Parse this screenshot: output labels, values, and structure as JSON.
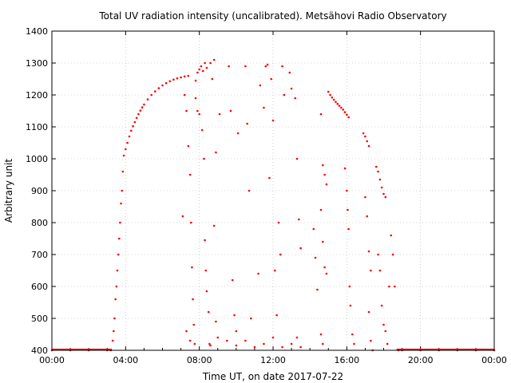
{
  "chart_data": {
    "type": "scatter",
    "title": "Total UV radiation intensity (uncalibrated). Metsähovi Radio Observatory",
    "xlabel": "Time UT, on date 2017-07-22",
    "ylabel": "Arbitrary unit",
    "xlim": [
      "00:00",
      "24:00"
    ],
    "ylim": [
      400,
      1400
    ],
    "x_ticks": [
      "00:00",
      "04:00",
      "08:00",
      "12:00",
      "16:00",
      "20:00",
      "00:00"
    ],
    "y_ticks": [
      "400",
      "500",
      "600",
      "700",
      "800",
      "900",
      "1000",
      "1100",
      "1200",
      "1300",
      "1400"
    ],
    "grid": true,
    "marker_color": "#ff0000",
    "series": [
      {
        "x_unit": "hours UT",
        "points": [
          [
            0.0,
            400
          ],
          [
            1.0,
            400
          ],
          [
            2.0,
            400
          ],
          [
            3.0,
            400
          ],
          [
            3.2,
            400
          ],
          [
            3.3,
            430
          ],
          [
            3.35,
            460
          ],
          [
            3.4,
            500
          ],
          [
            3.45,
            560
          ],
          [
            3.5,
            600
          ],
          [
            3.55,
            650
          ],
          [
            3.6,
            700
          ],
          [
            3.65,
            750
          ],
          [
            3.7,
            800
          ],
          [
            3.75,
            860
          ],
          [
            3.8,
            900
          ],
          [
            3.85,
            960
          ],
          [
            3.9,
            1010
          ],
          [
            4.0,
            1030
          ],
          [
            4.1,
            1050
          ],
          [
            4.2,
            1070
          ],
          [
            4.3,
            1088
          ],
          [
            4.4,
            1102
          ],
          [
            4.5,
            1115
          ],
          [
            4.6,
            1128
          ],
          [
            4.7,
            1140
          ],
          [
            4.8,
            1151
          ],
          [
            4.9,
            1161
          ],
          [
            5.0,
            1170
          ],
          [
            5.2,
            1186
          ],
          [
            5.4,
            1200
          ],
          [
            5.6,
            1211
          ],
          [
            5.8,
            1221
          ],
          [
            6.0,
            1230
          ],
          [
            6.2,
            1237
          ],
          [
            6.4,
            1243
          ],
          [
            6.6,
            1248
          ],
          [
            6.8,
            1252
          ],
          [
            7.0,
            1255
          ],
          [
            7.2,
            1258
          ],
          [
            7.4,
            1260
          ],
          [
            7.1,
            820
          ],
          [
            7.2,
            1200
          ],
          [
            7.3,
            1150
          ],
          [
            7.4,
            1040
          ],
          [
            7.5,
            950
          ],
          [
            7.55,
            800
          ],
          [
            7.6,
            660
          ],
          [
            7.65,
            560
          ],
          [
            7.7,
            480
          ],
          [
            7.75,
            420
          ],
          [
            7.3,
            460
          ],
          [
            7.5,
            430
          ],
          [
            7.8,
            1245
          ],
          [
            7.9,
            1270
          ],
          [
            8.0,
            1280
          ],
          [
            8.1,
            1290
          ],
          [
            8.2,
            1275
          ],
          [
            8.3,
            1300
          ],
          [
            8.4,
            1285
          ],
          [
            8.6,
            1300
          ],
          [
            8.8,
            1310
          ],
          [
            7.8,
            1190
          ],
          [
            7.9,
            1150
          ],
          [
            8.0,
            1140
          ],
          [
            8.15,
            1090
          ],
          [
            8.25,
            1000
          ],
          [
            8.3,
            745
          ],
          [
            8.35,
            650
          ],
          [
            8.4,
            585
          ],
          [
            8.5,
            520
          ],
          [
            8.55,
            420
          ],
          [
            8.6,
            415
          ],
          [
            8.7,
            1250
          ],
          [
            8.8,
            790
          ],
          [
            8.9,
            490
          ],
          [
            8.9,
            1020
          ],
          [
            9.0,
            440
          ],
          [
            9.1,
            1140
          ],
          [
            9.6,
            1290
          ],
          [
            9.7,
            1150
          ],
          [
            9.8,
            620
          ],
          [
            9.9,
            510
          ],
          [
            10.0,
            460
          ],
          [
            10.1,
            1080
          ],
          [
            10.5,
            1290
          ],
          [
            10.6,
            1110
          ],
          [
            10.7,
            900
          ],
          [
            10.8,
            500
          ],
          [
            11.2,
            640
          ],
          [
            11.3,
            1230
          ],
          [
            11.5,
            1160
          ],
          [
            11.6,
            1290
          ],
          [
            11.7,
            1295
          ],
          [
            11.8,
            940
          ],
          [
            11.9,
            1250
          ],
          [
            12.0,
            1120
          ],
          [
            12.1,
            650
          ],
          [
            12.2,
            510
          ],
          [
            12.3,
            800
          ],
          [
            12.4,
            700
          ],
          [
            12.5,
            1290
          ],
          [
            12.6,
            1200
          ],
          [
            12.9,
            1270
          ],
          [
            13.0,
            1220
          ],
          [
            13.2,
            1190
          ],
          [
            13.3,
            1000
          ],
          [
            13.4,
            810
          ],
          [
            13.5,
            720
          ],
          [
            13.3,
            440
          ],
          [
            9.5,
            430
          ],
          [
            10.0,
            415
          ],
          [
            10.5,
            430
          ],
          [
            11.0,
            410
          ],
          [
            11.5,
            420
          ],
          [
            12.0,
            440
          ],
          [
            12.5,
            410
          ],
          [
            13.0,
            420
          ],
          [
            13.5,
            410
          ],
          [
            14.2,
            780
          ],
          [
            14.3,
            690
          ],
          [
            14.4,
            590
          ],
          [
            14.6,
            1140
          ],
          [
            14.7,
            980
          ],
          [
            14.8,
            950
          ],
          [
            14.9,
            920
          ],
          [
            14.6,
            840
          ],
          [
            14.7,
            740
          ],
          [
            14.8,
            660
          ],
          [
            14.9,
            640
          ],
          [
            14.6,
            450
          ],
          [
            14.7,
            420
          ],
          [
            15.0,
            1210
          ],
          [
            15.1,
            1200
          ],
          [
            15.2,
            1192
          ],
          [
            15.3,
            1185
          ],
          [
            15.4,
            1178
          ],
          [
            15.5,
            1172
          ],
          [
            15.6,
            1166
          ],
          [
            15.7,
            1160
          ],
          [
            15.8,
            1154
          ],
          [
            15.9,
            1146
          ],
          [
            16.0,
            1138
          ],
          [
            16.1,
            1130
          ],
          [
            15.9,
            970
          ],
          [
            16.0,
            900
          ],
          [
            16.05,
            840
          ],
          [
            16.1,
            780
          ],
          [
            16.15,
            600
          ],
          [
            16.2,
            540
          ],
          [
            16.3,
            450
          ],
          [
            16.4,
            420
          ],
          [
            16.9,
            1080
          ],
          [
            17.0,
            1070
          ],
          [
            17.1,
            1055
          ],
          [
            17.2,
            1040
          ],
          [
            17.0,
            880
          ],
          [
            17.1,
            820
          ],
          [
            17.2,
            710
          ],
          [
            17.3,
            650
          ],
          [
            17.2,
            520
          ],
          [
            17.3,
            430
          ],
          [
            17.4,
            400
          ],
          [
            17.6,
            975
          ],
          [
            17.7,
            960
          ],
          [
            17.8,
            935
          ],
          [
            17.9,
            910
          ],
          [
            18.0,
            890
          ],
          [
            18.1,
            880
          ],
          [
            17.7,
            700
          ],
          [
            17.8,
            650
          ],
          [
            17.9,
            540
          ],
          [
            18.0,
            480
          ],
          [
            18.1,
            460
          ],
          [
            18.2,
            420
          ],
          [
            18.3,
            600
          ],
          [
            18.4,
            760
          ],
          [
            18.5,
            700
          ],
          [
            18.6,
            600
          ],
          [
            18.8,
            400
          ],
          [
            19.0,
            400
          ],
          [
            20.0,
            400
          ],
          [
            21.0,
            400
          ],
          [
            22.0,
            400
          ],
          [
            23.0,
            400
          ],
          [
            24.0,
            400
          ]
        ]
      }
    ]
  }
}
